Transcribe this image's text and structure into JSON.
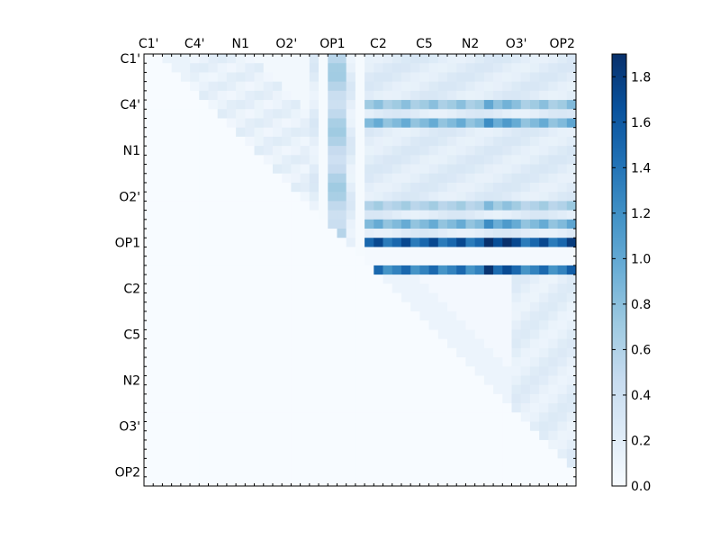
{
  "chart_data": {
    "type": "heatmap",
    "title": "",
    "colormap": "Blues",
    "x_tick_labels": [
      "C1'",
      "C4'",
      "N1",
      "O2'",
      "OP1",
      "C2",
      "C5",
      "N2",
      "O3'",
      "OP2"
    ],
    "y_tick_labels": [
      "C1'",
      "C4'",
      "N1",
      "O2'",
      "OP1",
      "C2",
      "C5",
      "N2",
      "O3'",
      "OP2"
    ],
    "color_scale": {
      "min": 0.0,
      "max": 1.9
    },
    "colorbar_ticks": [
      "0.0",
      "0.2",
      "0.4",
      "0.6",
      "0.8",
      "1.0",
      "1.2",
      "1.4",
      "1.6",
      "1.8"
    ],
    "colorbar_tick_values": [
      0.0,
      0.2,
      0.4,
      0.6,
      0.8,
      1.0,
      1.2,
      1.4,
      1.6,
      1.8
    ],
    "cells": 47,
    "notable_rows": [
      {
        "row": 20,
        "label_near": "OP1",
        "from_col": 24,
        "to_col": 46,
        "value": 1.5
      },
      {
        "row": 23,
        "label_near": "OP1/C2",
        "from_col": 24,
        "to_col": 46,
        "value": 1.3
      },
      {
        "row": 5,
        "label_near": "C4'",
        "from_col": 24,
        "to_col": 46,
        "value": 0.7
      },
      {
        "row": 7,
        "label_near": "C4'",
        "from_col": 24,
        "to_col": 46,
        "value": 0.85
      },
      {
        "row": 16,
        "label_near": "O2'",
        "from_col": 24,
        "to_col": 46,
        "value": 0.6
      },
      {
        "row": 18,
        "label_near": "O2'",
        "from_col": 24,
        "to_col": 46,
        "value": 0.85
      }
    ]
  }
}
